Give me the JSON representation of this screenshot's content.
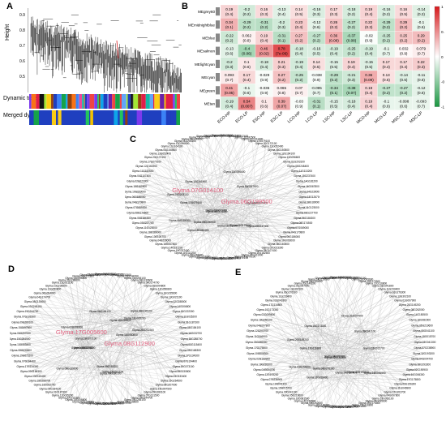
{
  "panel_labels": {
    "a": "A",
    "b": "B",
    "c": "C",
    "d": "D",
    "e": "E"
  },
  "dendrogram": {
    "ylabel": "Height",
    "yticks": [
      "0.9",
      "0.8",
      "0.7",
      "0.6",
      "0.5"
    ],
    "row1_label": "Dynamic tree cut",
    "row2_label": "Merged dynamic"
  },
  "heatmap": {
    "rows": [
      "MEgrey60",
      "MEmidnightblue",
      "MEblue",
      "MEsalmon",
      "MElightcyan",
      "MEcyan",
      "MEgreen",
      "MEtan"
    ],
    "cols": [
      "ECO-HP",
      "ECO-LP",
      "ESC-HP",
      "ESC-LP",
      "LCO-HP",
      "LCO-LP",
      "LSC-HP",
      "LSC-LP",
      "MCO-HP",
      "MCO-LP",
      "MSC-HP",
      "MSC-LP"
    ],
    "r": [
      [
        "0.19",
        "-0.2",
        "0.16",
        "-0.13",
        "0.14",
        "-0.16",
        "0.17",
        "-0.18",
        "0.19",
        "-0.16",
        "0.16",
        "-0.14"
      ],
      [
        "0.34",
        "-0.29",
        "-0.31",
        "-0.2",
        "0.23",
        "-0.12",
        "0.26",
        "-0.27",
        "0.22",
        "-0.29",
        "0.29",
        "-0.1"
      ],
      [
        "-0.22",
        "0.062",
        "0.19",
        "-0.31",
        "0.27",
        "-0.27",
        "0.36",
        "-0.37",
        "-0.02",
        "-0.25",
        "0.25",
        "0.29"
      ],
      [
        "-0.13",
        "-0.4",
        "0.46",
        "0.78",
        "-0.18",
        "-0.16",
        "-0.19",
        "-0.25",
        "-0.19",
        "-0.1",
        "0.032",
        "0.079"
      ],
      [
        "-0.2",
        "0.1",
        "-0.18",
        "0.21",
        "-0.19",
        "0.14",
        "-0.15",
        "0.19",
        "-0.15",
        "0.17",
        "0.17",
        "0.22"
      ],
      [
        "0.093",
        "0.17",
        "-0.029",
        "0.27",
        "-0.25",
        "-0.038",
        "-0.29",
        "-0.21",
        "0.36",
        "0.13",
        "-0.14",
        "-0.11"
      ],
      [
        "0.41",
        "-0.1",
        "-0.036",
        "0.065",
        "0.07",
        "-0.095",
        "-0.34",
        "-0.38",
        "0.19",
        "-0.27",
        "-0.27",
        "-0.12"
      ],
      [
        "-0.19",
        "0.54",
        "0.1",
        "0.39",
        "-0.03",
        "-0.31",
        "-0.15",
        "-0.18",
        "0.19",
        "-0.1",
        "-0.098",
        "-0.093"
      ]
    ],
    "p": [
      [
        "(0.4)",
        "(0.2)",
        "(0.3)",
        "(0.4)",
        "(0.5)",
        "(0.3)",
        "(0.3)",
        "(0.2)",
        "(0.4)",
        "(0.2)",
        "(0.5)",
        "(0.2)"
      ],
      [
        "(0.1)",
        "(0.2)",
        "(0.2)",
        "(0.3)",
        "(0.4)",
        "(0.6)",
        "(0.2)",
        "(0.2)",
        "(0.3)",
        "(0.2)",
        "(0.2)",
        "(0.6)"
      ],
      [
        "(0.2)",
        "(0.8)",
        "(0.4)",
        "(0.1)",
        "(0.2)",
        "(0.2)",
        "(0.08)",
        "(0.08)",
        "(0.9)",
        "(0.2)",
        "(0.2)",
        "(0.2)"
      ],
      [
        "(0.6)",
        "(0.06)",
        "(0.02)",
        "(7e-06)",
        "(0.4)",
        "(0.5)",
        "(0.4)",
        "(0.2)",
        "(0.4)",
        "(0.7)",
        "(0.9)",
        "(0.7)"
      ],
      [
        "(0.3)",
        "(0.6)",
        "(0.4)",
        "(0.3)",
        "(0.4)",
        "(0.5)",
        "(0.5)",
        "(0.4)",
        "(0.5)",
        "(0.4)",
        "(0.4)",
        "(0.3)"
      ],
      [
        "(0.7)",
        "(0.4)",
        "(0.9)",
        "(0.2)",
        "(0.2)",
        "(0.9)",
        "(0.2)",
        "(0.3)",
        "(0.09)",
        "(0.5)",
        "(0.5)",
        "(0.6)"
      ],
      [
        "(0.05)",
        "(0.6)",
        "(0.9)",
        "(0.8)",
        "(0.7)",
        "(0.7)",
        "(0.1)",
        "(0.07)",
        "(0.4)",
        "(0.2)",
        "(0.2)",
        "(0.6)"
      ],
      [
        "(0.4)",
        "(0.007)",
        "(0.6)",
        "(0.07)",
        "(0.9)",
        "(0.1)",
        "(0.5)",
        "(0.4)",
        "(0.4)",
        "(0.6)",
        "(0.6)",
        "(0.7)"
      ]
    ],
    "scale_ticks": [
      "0.5",
      "0",
      "-0.5",
      "-1"
    ],
    "scale_top": "1",
    "color_pos": "#d7191c",
    "color_neg": "#1a9641"
  },
  "network_c": {
    "hubs": [
      "Glyma.07G014100",
      "Glyma.06G199500"
    ],
    "highlight_color": "#e0607e",
    "node_labels": [
      "Glyma.18G160500",
      "Glyma.02G023300",
      "Glyma.04G107400",
      "Glyma.11G182500",
      "Glyma.12G161900",
      "Glyma.17G079100",
      "Glyma.20G172100",
      "Glyma.13G052400",
      "Glyma.05G150500",
      "Glyma.12G164100",
      "Glyma.13G096600",
      "Glyma.01G203100",
      "Glyma.09G248400",
      "Glyma.11G113200",
      "Glyma.19G237400",
      "Glyma.14G181200",
      "Glyma.16G067800",
      "Glyma.04G239000",
      "Glyma.13G126700",
      "Glyma.18G189000",
      "Glyma.11G123000",
      "Glyma.03G227700",
      "Glyma.06G184300",
      "Glyma.08G174500",
      "Glyma.07G069000",
      "Glyma.04G170800",
      "Glyma.06G186000",
      "Glyma.10G093000"
    ]
  },
  "network_d": {
    "hubs": [
      "Glyma.17G005600",
      "Glyma.08G112900"
    ],
    "highlight_color": "#e0607e",
    "node_labels": [
      "Glyma.15G097500",
      "Glyma.09G280100",
      "Glyma.07G131500",
      "Glyma.19G244700",
      "Glyma.03G245100",
      "Glyma.08G139600",
      "Glyma.04G174700",
      "Glyma.06G094800",
      "Glyma.12G050800",
      "Glyma.10G235600",
      "Glyma.13G021100",
      "Glyma.02G288000",
      "Glyma.14G006800",
      "Glyma.20G222300",
      "Glyma.11G035200",
      "Glyma.01G187300",
      "Glyma.05G184100",
      "Glyma.16G032700",
      "Glyma.18G288700",
      "Glyma.03G115400",
      "Glyma.09G168300",
      "Glyma.17G134300",
      "Glyma.07G194400",
      "Glyma.19G073100",
      "Glyma.08G030800",
      "Glyma.13G333400",
      "Glyma.15G264500",
      "Glyma.06G207000"
    ]
  },
  "network_e": {
    "hubs": [],
    "highlight_color": "#e0607e",
    "node_labels": [
      "Glyma.12G202700",
      "Glyma.04G097800",
      "Glyma.18G056100",
      "Glyma.02G095600",
      "Glyma.10G173300",
      "Glyma.17G116800",
      "Glyma.03G041800",
      "Glyma.11G233400",
      "Glyma.06G276300",
      "Glyma.13G302100",
      "Glyma.01G097900",
      "Glyma.20G149200",
      "Glyma.08G262000",
      "Glyma.14G150500",
      "Glyma.16G081500",
      "Glyma.05G219600",
      "Glyma.09G041100",
      "Glyma.15G015700",
      "Glyma.19G041300",
      "Glyma.07G238900",
      "Glyma.12G193200",
      "Glyma.04G004700",
      "Glyma.18G293300",
      "Glyma.02G190900",
      "Glyma.10G006300",
      "Glyma.17G175800",
      "Glyma.03G156300",
      "Glyma.11G046900"
    ]
  }
}
